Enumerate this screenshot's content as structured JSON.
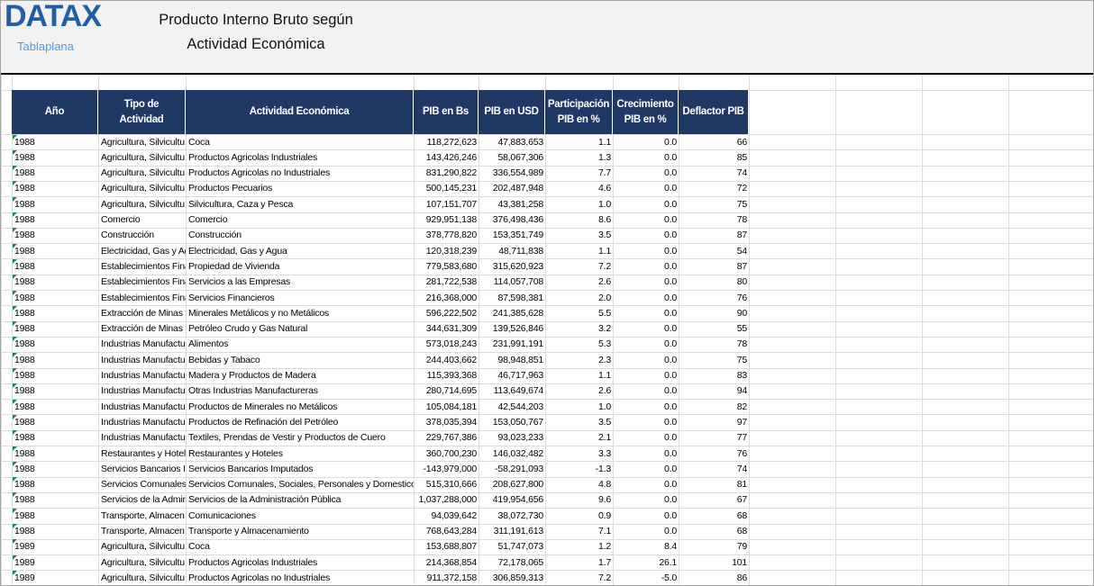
{
  "header": {
    "logo": "DATAX",
    "logo_sub": "Tablaplana",
    "title_lines": [
      "Producto Interno Bruto según",
      "Actividad Económica"
    ]
  },
  "table": {
    "columns": [
      [
        "Año"
      ],
      [
        "Tipo de",
        "Actividad"
      ],
      [
        "Actividad Económica"
      ],
      [
        "PIB en Bs"
      ],
      [
        "PIB en USD"
      ],
      [
        "Participación",
        "PIB en %"
      ],
      [
        "Crecimiento",
        "PIB en %"
      ],
      [
        "Deflactor PIB"
      ]
    ],
    "rows": [
      [
        "1988",
        "Agricultura, Silvicultu",
        "Coca",
        "118,272,623",
        "47,883,653",
        "1.1",
        "0.0",
        "66"
      ],
      [
        "1988",
        "Agricultura, Silvicultu",
        "Productos Agricolas Industriales",
        "143,426,246",
        "58,067,306",
        "1.3",
        "0.0",
        "85"
      ],
      [
        "1988",
        "Agricultura, Silvicultu",
        "Productos Agricolas no Industriales",
        "831,290,822",
        "336,554,989",
        "7.7",
        "0.0",
        "74"
      ],
      [
        "1988",
        "Agricultura, Silvicultu",
        "Productos Pecuarios",
        "500,145,231",
        "202,487,948",
        "4.6",
        "0.0",
        "72"
      ],
      [
        "1988",
        "Agricultura, Silvicultu",
        "Silvicultura, Caza y Pesca",
        "107,151,707",
        "43,381,258",
        "1.0",
        "0.0",
        "75"
      ],
      [
        "1988",
        "Comercio",
        "Comercio",
        "929,951,138",
        "376,498,436",
        "8.6",
        "0.0",
        "78"
      ],
      [
        "1988",
        "Construcción",
        "Construcción",
        "378,778,820",
        "153,351,749",
        "3.5",
        "0.0",
        "87"
      ],
      [
        "1988",
        "Electricidad, Gas y Ag",
        "Electricidad, Gas y Agua",
        "120,318,239",
        "48,711,838",
        "1.1",
        "0.0",
        "54"
      ],
      [
        "1988",
        "Establecimientos Fina",
        "Propiedad de Vivienda",
        "779,583,680",
        "315,620,923",
        "7.2",
        "0.0",
        "87"
      ],
      [
        "1988",
        "Establecimientos Fina",
        "Servicios a las Empresas",
        "281,722,538",
        "114,057,708",
        "2.6",
        "0.0",
        "80"
      ],
      [
        "1988",
        "Establecimientos Fina",
        "Servicios Financieros",
        "216,368,000",
        "87,598,381",
        "2.0",
        "0.0",
        "76"
      ],
      [
        "1988",
        "Extracción de Minas y",
        "Minerales Metálicos y no Metálicos",
        "596,222,502",
        "241,385,628",
        "5.5",
        "0.0",
        "90"
      ],
      [
        "1988",
        "Extracción de Minas y",
        "Petróleo Crudo y Gas Natural",
        "344,631,309",
        "139,526,846",
        "3.2",
        "0.0",
        "55"
      ],
      [
        "1988",
        "Industrias Manufactur",
        "Alimentos",
        "573,018,243",
        "231,991,191",
        "5.3",
        "0.0",
        "78"
      ],
      [
        "1988",
        "Industrias Manufactur",
        "Bebidas y Tabaco",
        "244,403,662",
        "98,948,851",
        "2.3",
        "0.0",
        "75"
      ],
      [
        "1988",
        "Industrias Manufactur",
        "Madera y Productos de Madera",
        "115,393,368",
        "46,717,963",
        "1.1",
        "0.0",
        "83"
      ],
      [
        "1988",
        "Industrias Manufactur",
        "Otras Industrias Manufactureras",
        "280,714,695",
        "113,649,674",
        "2.6",
        "0.0",
        "94"
      ],
      [
        "1988",
        "Industrias Manufactur",
        "Productos de Minerales no Metálicos",
        "105,084,181",
        "42,544,203",
        "1.0",
        "0.0",
        "82"
      ],
      [
        "1988",
        "Industrias Manufactur",
        "Productos de Refinación del Petróleo",
        "378,035,394",
        "153,050,767",
        "3.5",
        "0.0",
        "97"
      ],
      [
        "1988",
        "Industrias Manufactur",
        "Textiles, Prendas de Vestir y Productos de Cuero",
        "229,767,386",
        "93,023,233",
        "2.1",
        "0.0",
        "77"
      ],
      [
        "1988",
        "Restaurantes y Hotele",
        "Restaurantes y Hoteles",
        "360,700,230",
        "146,032,482",
        "3.3",
        "0.0",
        "76"
      ],
      [
        "1988",
        "Servicios Bancarios In",
        "Servicios Bancarios Imputados",
        "-143,979,000",
        "-58,291,093",
        "-1.3",
        "0.0",
        "74"
      ],
      [
        "1988",
        "Servicios Comunales,",
        "Servicios Comunales, Sociales, Personales y Domestico",
        "515,310,666",
        "208,627,800",
        "4.8",
        "0.0",
        "81"
      ],
      [
        "1988",
        "Servicios de la Admin",
        "Servicios de la Administración Pública",
        "1,037,288,000",
        "419,954,656",
        "9.6",
        "0.0",
        "67"
      ],
      [
        "1988",
        "Transporte, Almacen",
        "Comunicaciones",
        "94,039,642",
        "38,072,730",
        "0.9",
        "0.0",
        "68"
      ],
      [
        "1988",
        "Transporte, Almacen",
        "Transporte y Almacenamiento",
        "768,643,284",
        "311,191,613",
        "7.1",
        "0.0",
        "68"
      ],
      [
        "1989",
        "Agricultura, Silvicultu",
        "Coca",
        "153,688,807",
        "51,747,073",
        "1.2",
        "8.4",
        "79"
      ],
      [
        "1989",
        "Agricultura, Silvicultu",
        "Productos Agricolas Industriales",
        "214,368,854",
        "72,178,065",
        "1.7",
        "26.1",
        "101"
      ],
      [
        "1989",
        "Agricultura, Silvicultu",
        "Productos Agricolas no Industriales",
        "911,372,158",
        "306,859,313",
        "7.2",
        "-5.0",
        "86"
      ]
    ]
  }
}
